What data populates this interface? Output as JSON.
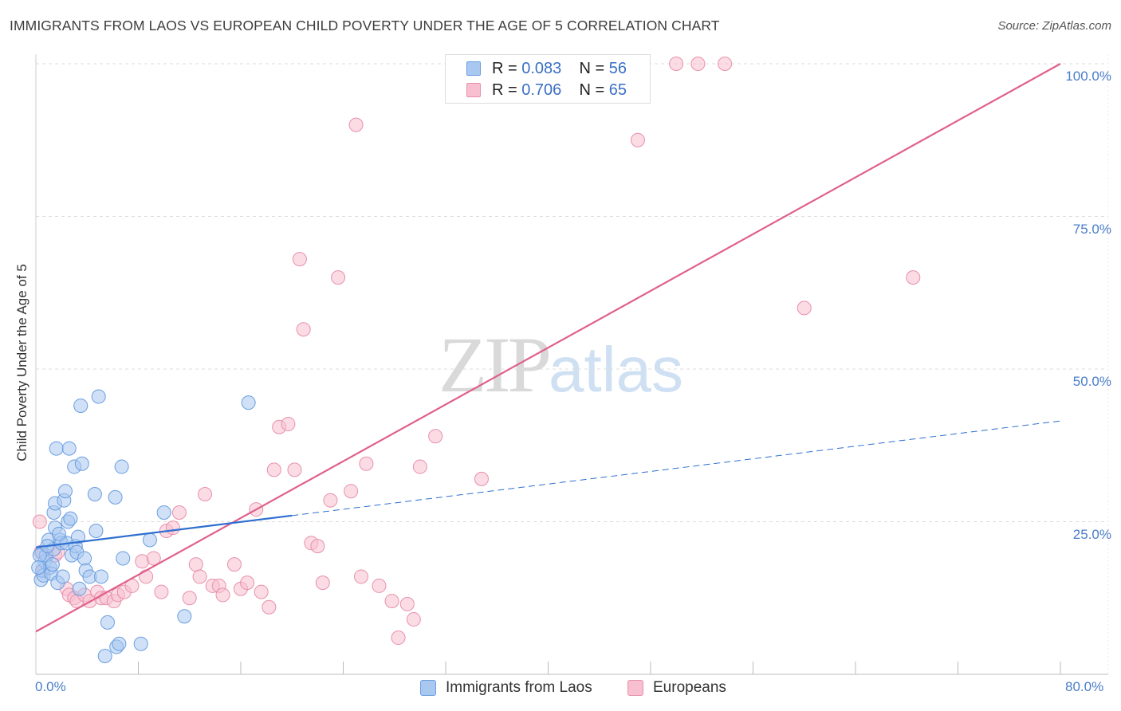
{
  "title": "IMMIGRANTS FROM LAOS VS EUROPEAN CHILD POVERTY UNDER THE AGE OF 5 CORRELATION CHART",
  "source": "Source: ZipAtlas.com",
  "watermark": {
    "zip": "ZIP",
    "atlas": "atlas"
  },
  "legend": {
    "r_label": "R =",
    "n_label": "N =",
    "series1": {
      "r": "0.083",
      "n": "56"
    },
    "series2": {
      "r": "0.706",
      "n": "65"
    }
  },
  "chart_data": {
    "type": "scatter",
    "title": "IMMIGRANTS FROM LAOS VS EUROPEAN CHILD POVERTY UNDER THE AGE OF 5 CORRELATION CHART",
    "xlabel": "",
    "ylabel": "Child Poverty Under the Age of 5",
    "xlim": [
      0,
      80
    ],
    "ylim": [
      0,
      100
    ],
    "x_tick_labels": [
      "0.0%",
      "80.0%"
    ],
    "y_tick_labels": [
      "100.0%",
      "75.0%",
      "50.0%",
      "25.0%"
    ],
    "y_tick_values": [
      100,
      75,
      50,
      25
    ],
    "x_minor_ticks": [
      8,
      16,
      24,
      32,
      40,
      48,
      56,
      64,
      72,
      80
    ],
    "colors": {
      "series1_fill": "#a9c8f0",
      "series1_stroke": "#6a9ee0",
      "series1_line": "#2f6fd0",
      "series2_fill": "#f7bfd0",
      "series2_stroke": "#e890ad",
      "series2_line": "#e0608a"
    },
    "series": [
      {
        "name": "Immigrants from Laos",
        "r": 0.083,
        "n": 56,
        "trend": {
          "x0": 0,
          "y0": 20.8,
          "x1": 20,
          "y1": 26,
          "dashed_x1": 80,
          "dashed_y1": 41.5
        },
        "points": [
          [
            0.4,
            15.5
          ],
          [
            0.5,
            17
          ],
          [
            0.5,
            20
          ],
          [
            0.7,
            18.5
          ],
          [
            0.8,
            19.5
          ],
          [
            0.6,
            16.2
          ],
          [
            1.0,
            22
          ],
          [
            1.1,
            17.5
          ],
          [
            1.2,
            16.5
          ],
          [
            1.3,
            18
          ],
          [
            1.4,
            20.5
          ],
          [
            1.5,
            24
          ],
          [
            1.4,
            26.5
          ],
          [
            1.5,
            28
          ],
          [
            1.6,
            37
          ],
          [
            1.7,
            15
          ],
          [
            1.9,
            22
          ],
          [
            2.0,
            21.5
          ],
          [
            2.2,
            28.5
          ],
          [
            2.3,
            30
          ],
          [
            2.4,
            21.5
          ],
          [
            2.5,
            25
          ],
          [
            2.6,
            37
          ],
          [
            2.7,
            25.5
          ],
          [
            2.8,
            19.5
          ],
          [
            3.0,
            34
          ],
          [
            3.1,
            21
          ],
          [
            3.2,
            20
          ],
          [
            3.4,
            14
          ],
          [
            3.5,
            44
          ],
          [
            3.6,
            34.5
          ],
          [
            3.8,
            19
          ],
          [
            3.9,
            17
          ],
          [
            4.2,
            16
          ],
          [
            4.6,
            29.5
          ],
          [
            4.7,
            23.5
          ],
          [
            4.9,
            45.5
          ],
          [
            5.1,
            16
          ],
          [
            5.4,
            3
          ],
          [
            5.6,
            8.5
          ],
          [
            6.2,
            29
          ],
          [
            6.3,
            4.5
          ],
          [
            6.5,
            5
          ],
          [
            6.7,
            34
          ],
          [
            6.8,
            19
          ],
          [
            8.2,
            5
          ],
          [
            8.9,
            22
          ],
          [
            10.0,
            26.5
          ],
          [
            11.6,
            9.5
          ],
          [
            16.6,
            44.5
          ],
          [
            0.3,
            19.5
          ],
          [
            0.9,
            21
          ],
          [
            1.8,
            23
          ],
          [
            2.1,
            16
          ],
          [
            3.3,
            22.5
          ],
          [
            0.2,
            17.5
          ]
        ]
      },
      {
        "name": "Europeans",
        "r": 0.706,
        "n": 65,
        "trend": {
          "x0": 0,
          "y0": 7,
          "x1": 80,
          "y1": 100
        },
        "points": [
          [
            0.3,
            25
          ],
          [
            0.4,
            20
          ],
          [
            0.6,
            17
          ],
          [
            1.5,
            19.5
          ],
          [
            1.7,
            20
          ],
          [
            2.4,
            14
          ],
          [
            2.6,
            13
          ],
          [
            3.0,
            12.5
          ],
          [
            3.2,
            12
          ],
          [
            3.8,
            13
          ],
          [
            4.2,
            12
          ],
          [
            4.8,
            13.5
          ],
          [
            5.1,
            12.5
          ],
          [
            5.5,
            12.5
          ],
          [
            6.1,
            12
          ],
          [
            6.4,
            13
          ],
          [
            6.9,
            13.5
          ],
          [
            7.5,
            14.5
          ],
          [
            8.3,
            18.5
          ],
          [
            8.6,
            16
          ],
          [
            9.2,
            19
          ],
          [
            9.8,
            13.5
          ],
          [
            10.2,
            23.5
          ],
          [
            10.7,
            24
          ],
          [
            11.2,
            26.5
          ],
          [
            12.0,
            12.5
          ],
          [
            12.5,
            18
          ],
          [
            12.8,
            16
          ],
          [
            13.2,
            29.5
          ],
          [
            13.8,
            14.5
          ],
          [
            14.3,
            14.5
          ],
          [
            14.6,
            13
          ],
          [
            15.5,
            18
          ],
          [
            16.0,
            14
          ],
          [
            16.5,
            15
          ],
          [
            17.2,
            27
          ],
          [
            17.6,
            13.5
          ],
          [
            18.2,
            11
          ],
          [
            18.6,
            33.5
          ],
          [
            19.0,
            40.5
          ],
          [
            19.7,
            41
          ],
          [
            20.2,
            33.5
          ],
          [
            20.6,
            68
          ],
          [
            20.9,
            56.5
          ],
          [
            21.5,
            21.5
          ],
          [
            22.0,
            21
          ],
          [
            22.4,
            15
          ],
          [
            23.0,
            28.5
          ],
          [
            23.6,
            65
          ],
          [
            24.6,
            30
          ],
          [
            25.0,
            90
          ],
          [
            25.4,
            16
          ],
          [
            25.8,
            34.5
          ],
          [
            26.8,
            14.5
          ],
          [
            27.8,
            12
          ],
          [
            28.3,
            6
          ],
          [
            29.0,
            11.5
          ],
          [
            29.5,
            9
          ],
          [
            30.0,
            34
          ],
          [
            31.2,
            39
          ],
          [
            34.8,
            32
          ],
          [
            47.0,
            87.5
          ],
          [
            50.0,
            100
          ],
          [
            51.7,
            100
          ],
          [
            53.8,
            100
          ]
        ],
        "extra_points": [
          [
            60.0,
            60
          ],
          [
            68.5,
            65
          ]
        ]
      }
    ]
  },
  "bottom_legend": {
    "series1": "Immigrants from Laos",
    "series2": "Europeans"
  }
}
